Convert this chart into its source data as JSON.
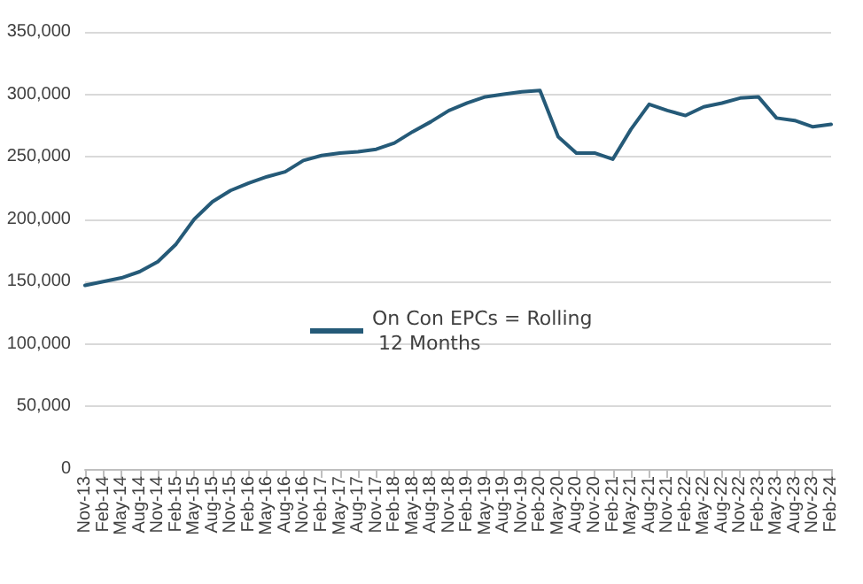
{
  "chart_data": {
    "type": "line",
    "categories": [
      "Nov-13",
      "Feb-14",
      "May-14",
      "Aug-14",
      "Nov-14",
      "Feb-15",
      "May-15",
      "Aug-15",
      "Nov-15",
      "Feb-16",
      "May-16",
      "Aug-16",
      "Nov-16",
      "Feb-17",
      "May-17",
      "Aug-17",
      "Nov-17",
      "Feb-18",
      "May-18",
      "Aug-18",
      "Nov-18",
      "Feb-19",
      "May-19",
      "Aug-19",
      "Nov-19",
      "Feb-20",
      "May-20",
      "Aug-20",
      "Nov-20",
      "Feb-21",
      "May-21",
      "Aug-21",
      "Nov-21",
      "Feb-22",
      "May-22",
      "Aug-22",
      "Nov-22",
      "Feb-23",
      "May-23",
      "Aug-23",
      "Nov-23",
      "Feb-24"
    ],
    "series": [
      {
        "name": "On Con EPCs = Rolling 12 Months",
        "color": "#255a78",
        "values": [
          147000,
          150000,
          153000,
          158000,
          166000,
          180000,
          200000,
          214000,
          223000,
          229000,
          234000,
          238000,
          247000,
          251000,
          253000,
          254000,
          256000,
          261000,
          270000,
          278000,
          287000,
          293000,
          298000,
          300000,
          302000,
          303000,
          266000,
          253000,
          253000,
          248000,
          272000,
          292000,
          287000,
          283000,
          290000,
          293000,
          297000,
          298000,
          281000,
          279000,
          274000,
          276000
        ]
      }
    ],
    "ylim": [
      0,
      350000
    ],
    "yticks": [
      0,
      {
        "value": 50000,
        "label": "50,000"
      },
      {
        "value": 100000,
        "label": "100,000"
      },
      {
        "value": 150000,
        "label": "150,000"
      },
      {
        "value": 200000,
        "label": "200,000"
      },
      {
        "value": 250000,
        "label": "250,000"
      },
      {
        "value": 300000,
        "label": "300,000"
      },
      {
        "value": 350000,
        "label": "350,000"
      }
    ],
    "grid": "y",
    "legend": "center",
    "marker": "none",
    "line_style": "solid"
  }
}
